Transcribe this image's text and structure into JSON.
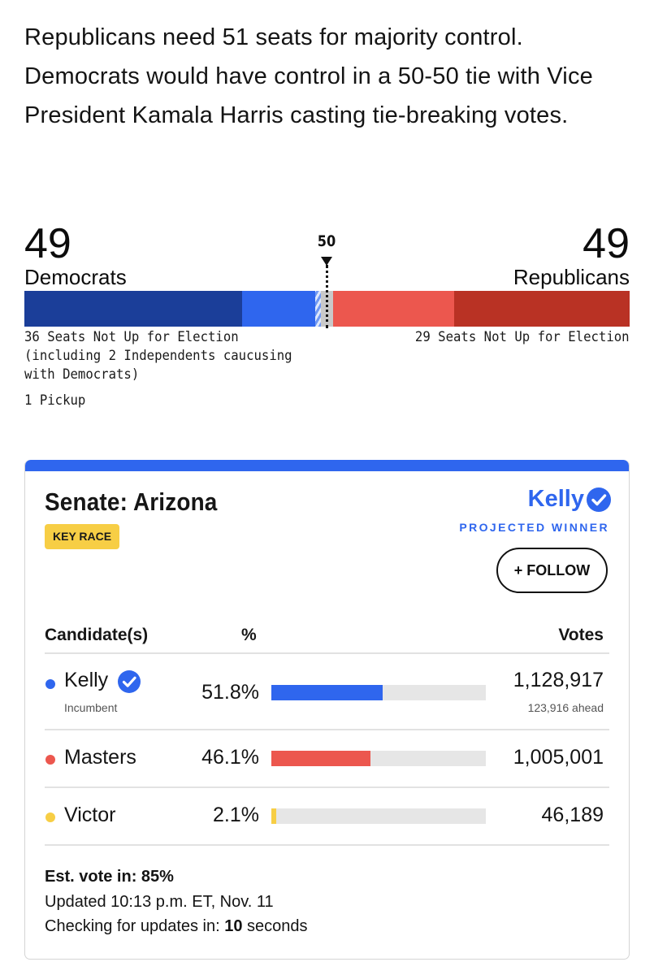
{
  "intro": {
    "text": "Republicans need 51 seats for majority control. Democrats would have control in a 50-50 tie with Vice President Kamala Harris casting tie-breaking votes."
  },
  "balance": {
    "dem_count": "49",
    "dem_label": "Democrats",
    "rep_count": "49",
    "rep_label": "Republicans",
    "midpoint_label": "50",
    "total_seats": 100,
    "dem_not_up": 36,
    "dem_won": 12,
    "dem_pickup": 1,
    "undecided": 2,
    "rep_won": 20,
    "rep_not_up": 29,
    "dem_note": "36 Seats Not Up for Election (including 2 Independents caucusing with Democrats)",
    "pickup_note": "1 Pickup",
    "rep_note": "29 Seats Not Up for Election",
    "colors": {
      "dem_not_up": "#1b3e99",
      "dem_up": "#2f66ee",
      "rep_up": "#ec574e",
      "rep_not_up": "#b93224",
      "undecided": "#c9c9c9"
    }
  },
  "race": {
    "title": "Senate: Arizona",
    "badge": "KEY RACE",
    "winner_name": "Kelly",
    "winner_label": "PROJECTED WINNER",
    "winner_icon": "check-circle-icon",
    "follow_label": "+ FOLLOW",
    "headers": {
      "candidate": "Candidate(s)",
      "percent": "%",
      "votes": "Votes"
    },
    "candidates": [
      {
        "name": "Kelly",
        "note": "Incumbent",
        "winner": true,
        "percent_label": "51.8%",
        "percent": 51.8,
        "votes": "1,128,917",
        "margin": "123,916 ahead",
        "color": "#2f66ee"
      },
      {
        "name": "Masters",
        "note": "",
        "winner": false,
        "percent_label": "46.1%",
        "percent": 46.1,
        "votes": "1,005,001",
        "margin": "",
        "color": "#ec574e"
      },
      {
        "name": "Victor",
        "note": "",
        "winner": false,
        "percent_label": "2.1%",
        "percent": 2.1,
        "votes": "46,189",
        "margin": "",
        "color": "#f7ce45"
      }
    ],
    "est_vote": "Est. vote in: 85%",
    "updated": "Updated 10:13 p.m. ET, Nov. 11",
    "checking_prefix": "Checking for updates in: ",
    "checking_seconds": "10",
    "checking_suffix": " seconds"
  }
}
